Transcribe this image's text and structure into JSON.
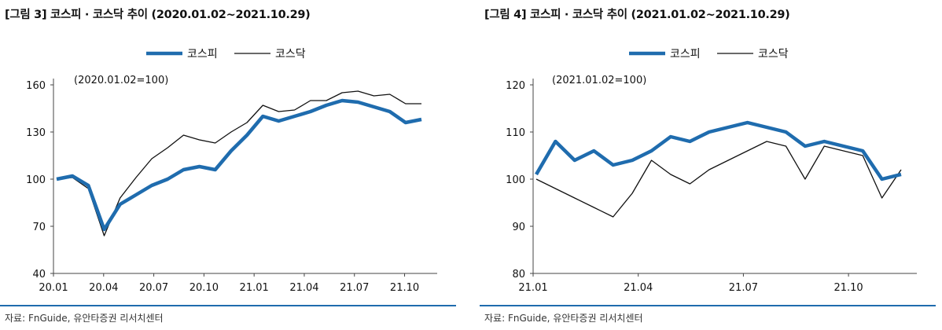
{
  "colors": {
    "kospi": "#1f6cae",
    "kosdaq": "#111111",
    "rule": "#1f6cae"
  },
  "chart_data": [
    {
      "type": "line",
      "title": "[그림 3] 코스피 · 코스닥 추이 (2020.01.02~2021.10.29)",
      "note": "(2020.01.02=100)",
      "source": "자료: FnGuide, 유안타증권 리서치센터",
      "legend_position": "top-center",
      "grid": false,
      "x_ticks": [
        "20.01",
        "20.04",
        "20.07",
        "20.10",
        "21.01",
        "21.04",
        "21.07",
        "21.10"
      ],
      "y_ticks": [
        40,
        70,
        100,
        130,
        160
      ],
      "ylim": [
        40,
        160
      ],
      "x": [
        "2020-01",
        "2020-02",
        "2020-03a",
        "2020-03b",
        "2020-04",
        "2020-05",
        "2020-06",
        "2020-07",
        "2020-08",
        "2020-09",
        "2020-10",
        "2020-11",
        "2020-12",
        "2021-01",
        "2021-02",
        "2021-03",
        "2021-04",
        "2021-05",
        "2021-06",
        "2021-07",
        "2021-08",
        "2021-09",
        "2021-10a",
        "2021-10b"
      ],
      "series": [
        {
          "name": "코스피",
          "values": [
            100,
            102,
            96,
            68,
            84,
            90,
            96,
            100,
            106,
            108,
            106,
            118,
            128,
            140,
            137,
            140,
            143,
            147,
            150,
            149,
            146,
            143,
            136,
            138
          ]
        },
        {
          "name": "코스닥",
          "values": [
            100,
            101,
            94,
            64,
            88,
            101,
            113,
            120,
            128,
            125,
            123,
            130,
            136,
            147,
            143,
            144,
            150,
            150,
            155,
            156,
            153,
            154,
            148,
            148
          ]
        }
      ]
    },
    {
      "type": "line",
      "title": "[그림 4] 코스피 · 코스닥 추이 (2021.01.02~2021.10.29)",
      "note": "(2021.01.02=100)",
      "source": "자료: FnGuide, 유안타증권 리서치센터",
      "legend_position": "top-center",
      "grid": false,
      "x_ticks": [
        "21.01",
        "21.04",
        "21.07",
        "21.10"
      ],
      "y_ticks": [
        80,
        90,
        100,
        110,
        120
      ],
      "ylim": [
        80,
        120
      ],
      "x": [
        "2021-01a",
        "2021-01b",
        "2021-02a",
        "2021-02b",
        "2021-03a",
        "2021-03b",
        "2021-04a",
        "2021-04b",
        "2021-05a",
        "2021-05b",
        "2021-06a",
        "2021-06b",
        "2021-07a",
        "2021-07b",
        "2021-08a",
        "2021-08b",
        "2021-09a",
        "2021-09b",
        "2021-10a",
        "2021-10b"
      ],
      "series": [
        {
          "name": "코스피",
          "values": [
            101,
            108,
            104,
            106,
            103,
            104,
            106,
            109,
            108,
            110,
            111,
            112,
            111,
            110,
            107,
            108,
            107,
            106,
            100,
            101
          ]
        },
        {
          "name": "코스닥",
          "values": [
            100,
            98,
            96,
            94,
            92,
            97,
            104,
            101,
            99,
            102,
            104,
            106,
            108,
            107,
            100,
            107,
            106,
            105,
            96,
            102
          ]
        }
      ]
    }
  ]
}
